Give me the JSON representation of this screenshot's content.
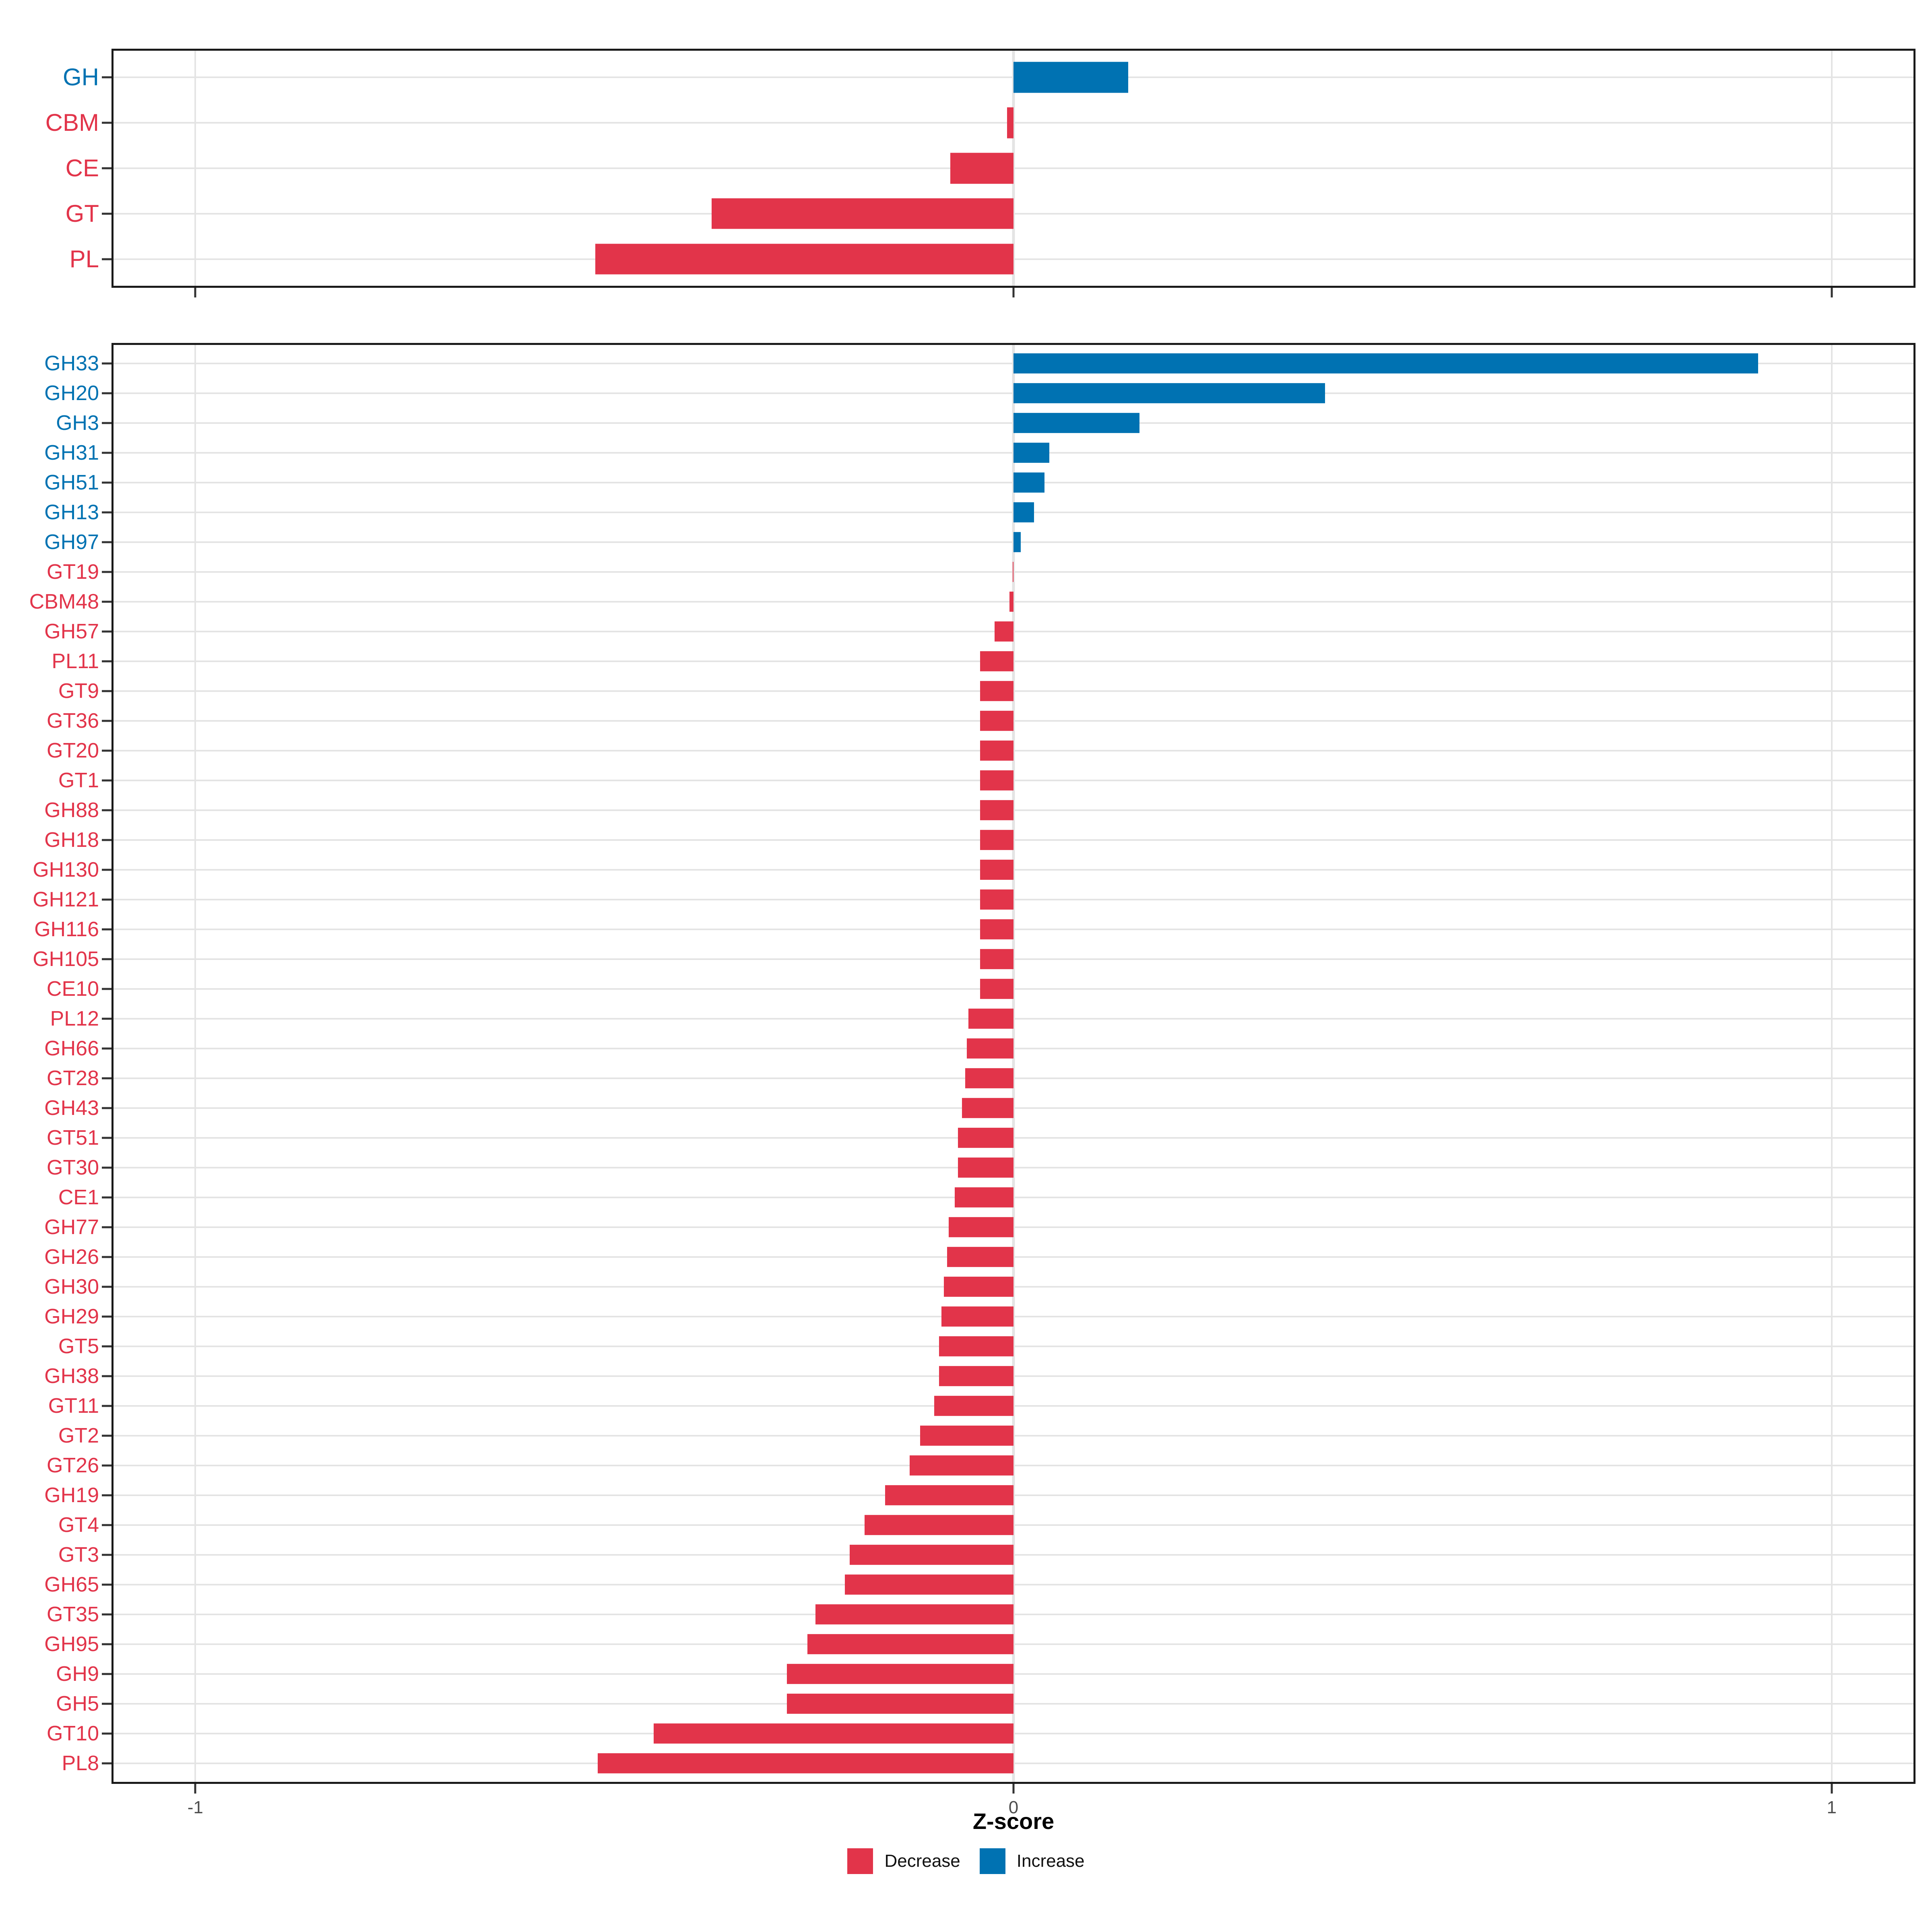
{
  "axis": {
    "xlabel": "Z-score",
    "tick_values": [
      -1,
      0,
      1
    ],
    "tick_labels": [
      "-1",
      "0",
      "1"
    ]
  },
  "legend": {
    "position": "bottom-center",
    "items": [
      {
        "label": "Decrease",
        "direction": "decrease",
        "color": "#E2344A"
      },
      {
        "label": "Increase",
        "direction": "increase",
        "color": "#0072B2"
      }
    ]
  },
  "colors": {
    "increase": "#0072B2",
    "decrease": "#E2344A",
    "grid": "#E4E4E4",
    "panel_border": "#1A1A1A",
    "tick_mark": "#333333",
    "tick_text": "#4D4D4D"
  },
  "chart_data": [
    {
      "id": "cazy-class",
      "type": "bar",
      "orientation": "horizontal",
      "title": "",
      "xlabel": "Z-score",
      "xlim": [
        -1.1,
        1.1
      ],
      "x_ticks": [
        -1,
        0,
        1
      ],
      "grid": "on",
      "categories": [
        "GH",
        "CBM",
        "CE",
        "GT",
        "PL"
      ],
      "values": [
        0.14,
        -0.008,
        -0.077,
        -0.369,
        -0.511
      ]
    },
    {
      "id": "cazy-family",
      "type": "bar",
      "orientation": "horizontal",
      "title": "",
      "xlabel": "Z-score",
      "xlim": [
        -1.1,
        1.1
      ],
      "x_ticks": [
        -1,
        0,
        1
      ],
      "grid": "on",
      "categories": [
        "GH33",
        "GH20",
        "GH3",
        "GH31",
        "GH51",
        "GH13",
        "GH97",
        "GT19",
        "CBM48",
        "GH57",
        "PL11",
        "GT9",
        "GT36",
        "GT20",
        "GT1",
        "GH88",
        "GH18",
        "GH130",
        "GH121",
        "GH116",
        "GH105",
        "CE10",
        "PL12",
        "GH66",
        "GT28",
        "GH43",
        "GT51",
        "GT30",
        "CE1",
        "GH77",
        "GH26",
        "GH30",
        "GH29",
        "GT5",
        "GH38",
        "GT11",
        "GT2",
        "GT26",
        "GH19",
        "GT4",
        "GT3",
        "GH65",
        "GT35",
        "GH95",
        "GH9",
        "GH5",
        "GT10",
        "PL8"
      ],
      "values": [
        0.91,
        0.381,
        0.154,
        0.044,
        0.038,
        0.025,
        0.009,
        -0.001,
        -0.005,
        -0.023,
        -0.041,
        -0.041,
        -0.041,
        -0.041,
        -0.041,
        -0.041,
        -0.041,
        -0.041,
        -0.041,
        -0.041,
        -0.041,
        -0.041,
        -0.055,
        -0.057,
        -0.059,
        -0.063,
        -0.068,
        -0.068,
        -0.072,
        -0.079,
        -0.081,
        -0.085,
        -0.088,
        -0.091,
        -0.091,
        -0.097,
        -0.114,
        -0.127,
        -0.157,
        -0.182,
        -0.2,
        -0.206,
        -0.242,
        -0.252,
        -0.277,
        -0.277,
        -0.44,
        -0.508
      ]
    }
  ]
}
